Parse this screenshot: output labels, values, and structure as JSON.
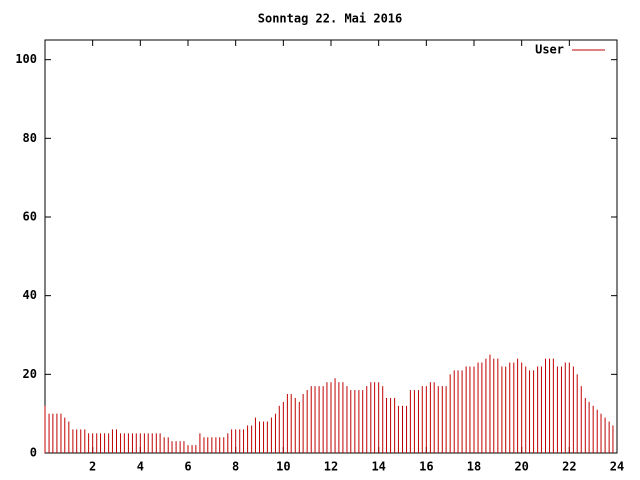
{
  "chart_data": {
    "type": "impulse",
    "title": "Sonntag 22. Mai 2016",
    "x": [
      0,
      0.17,
      0.33,
      0.5,
      0.67,
      0.83,
      1,
      1.17,
      1.33,
      1.5,
      1.67,
      1.83,
      2,
      2.17,
      2.33,
      2.5,
      2.67,
      2.83,
      3,
      3.17,
      3.33,
      3.5,
      3.67,
      3.83,
      4,
      4.17,
      4.33,
      4.5,
      4.67,
      4.83,
      5,
      5.17,
      5.33,
      5.5,
      5.67,
      5.83,
      6,
      6.17,
      6.33,
      6.5,
      6.67,
      6.83,
      7,
      7.17,
      7.33,
      7.5,
      7.67,
      7.83,
      8,
      8.17,
      8.33,
      8.5,
      8.67,
      8.83,
      9,
      9.17,
      9.33,
      9.5,
      9.67,
      9.83,
      10,
      10.17,
      10.33,
      10.5,
      10.67,
      10.83,
      11,
      11.17,
      11.33,
      11.5,
      11.67,
      11.83,
      12,
      12.17,
      12.33,
      12.5,
      12.67,
      12.83,
      13,
      13.17,
      13.33,
      13.5,
      13.67,
      13.83,
      14,
      14.17,
      14.33,
      14.5,
      14.67,
      14.83,
      15,
      15.17,
      15.33,
      15.5,
      15.67,
      15.83,
      16,
      16.17,
      16.33,
      16.5,
      16.67,
      16.83,
      17,
      17.17,
      17.33,
      17.5,
      17.67,
      17.83,
      18,
      18.17,
      18.33,
      18.5,
      18.67,
      18.83,
      19,
      19.17,
      19.33,
      19.5,
      19.67,
      19.83,
      20,
      20.17,
      20.33,
      20.5,
      20.67,
      20.83,
      21,
      21.17,
      21.33,
      21.5,
      21.67,
      21.83,
      22,
      22.17,
      22.33,
      22.5,
      22.67,
      22.83,
      23,
      23.17,
      23.33,
      23.5,
      23.67,
      23.83
    ],
    "series": [
      {
        "name": "User",
        "color": "#c00000",
        "values": [
          12,
          10,
          10,
          10,
          10,
          9,
          8,
          6,
          6,
          6,
          6,
          5,
          5,
          5,
          5,
          5,
          5,
          6,
          6,
          5,
          5,
          5,
          5,
          5,
          5,
          5,
          5,
          5,
          5,
          5,
          4,
          4,
          3,
          3,
          3,
          3,
          2,
          2,
          2,
          5,
          4,
          4,
          4,
          4,
          4,
          4,
          5,
          6,
          6,
          6,
          6,
          7,
          7,
          9,
          8,
          8,
          8,
          9,
          10,
          12,
          13,
          15,
          15,
          14,
          13,
          15,
          16,
          17,
          17,
          17,
          17,
          18,
          18,
          19,
          18,
          18,
          17,
          16,
          16,
          16,
          16,
          17,
          18,
          18,
          18,
          17,
          14,
          14,
          14,
          12,
          12,
          12,
          16,
          16,
          16,
          17,
          17,
          18,
          18,
          17,
          17,
          17,
          20,
          21,
          21,
          21,
          22,
          22,
          22,
          23,
          23,
          24,
          25,
          24,
          24,
          22,
          22,
          23,
          23,
          24,
          23,
          22,
          21,
          21,
          22,
          22,
          24,
          24,
          24,
          22,
          22,
          23,
          23,
          22,
          20,
          17,
          14,
          13,
          12,
          11,
          10,
          9,
          8,
          7
        ]
      }
    ],
    "xlim": [
      0,
      24
    ],
    "xticks": [
      2,
      4,
      6,
      8,
      10,
      12,
      14,
      16,
      18,
      20,
      22,
      24
    ],
    "ylim": [
      0,
      105
    ],
    "yticks": [
      0,
      20,
      40,
      60,
      80,
      100
    ],
    "legend": "upper right"
  }
}
